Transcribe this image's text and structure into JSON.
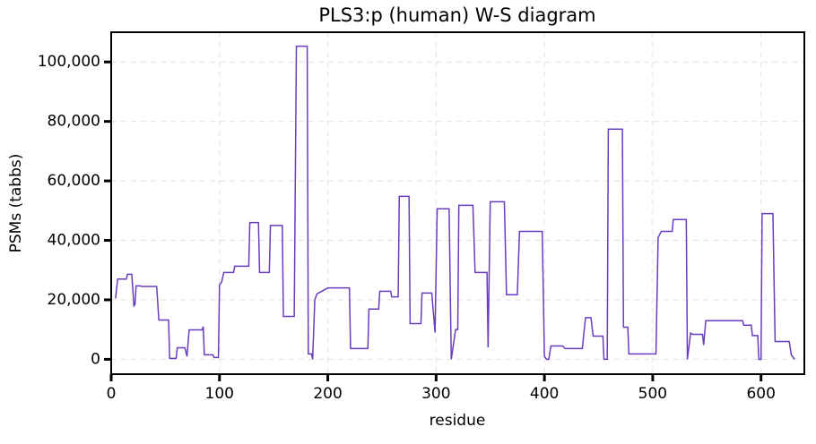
{
  "chart_data": {
    "type": "line",
    "title": "PLS3:p (human) W-S diagram",
    "xlabel": "residue",
    "ylabel": "PSMs (tabbs)",
    "xlim": [
      0,
      640
    ],
    "ylim": [
      -5000,
      110000
    ],
    "xticks": [
      0,
      100,
      200,
      300,
      400,
      500,
      600
    ],
    "yticks": [
      0,
      {
        "value": 20000,
        "label": "20,000"
      },
      {
        "value": 40000,
        "label": "40,000"
      },
      {
        "value": 60000,
        "label": "60,000"
      },
      {
        "value": 80000,
        "label": "80,000"
      },
      {
        "value": 100000,
        "label": "100,000"
      }
    ],
    "grid": true,
    "series": [
      {
        "color": "#6a3dbf",
        "x": [
          4,
          6,
          14,
          15,
          19,
          21,
          22,
          23,
          27,
          28,
          42,
          44,
          53,
          54,
          60,
          61,
          68,
          70,
          72,
          84,
          85,
          86,
          94,
          95,
          99,
          100,
          102,
          104,
          113,
          114,
          127,
          128,
          136,
          137,
          146,
          147,
          158,
          159,
          169,
          171,
          181,
          182,
          185,
          186,
          188,
          190,
          200,
          220,
          221,
          237,
          238,
          247,
          248,
          258,
          259,
          265,
          266,
          275,
          276,
          286,
          287,
          296,
          299,
          301,
          312,
          314,
          318,
          320,
          321,
          334,
          336,
          347,
          348,
          350,
          363,
          365,
          375,
          377,
          398,
          400,
          402,
          404,
          406,
          417,
          419,
          435,
          436,
          438,
          443,
          445,
          454,
          455,
          458,
          459,
          472,
          473,
          477,
          478,
          503,
          505,
          508,
          518,
          519,
          531,
          532,
          535,
          537,
          546,
          547,
          549,
          583,
          584,
          591,
          592,
          597,
          598,
          600,
          601,
          611,
          613,
          626,
          628,
          631
        ],
        "values": [
          20500,
          27000,
          27000,
          28600,
          28600,
          18000,
          18500,
          24700,
          24700,
          24500,
          24500,
          13200,
          13200,
          300,
          300,
          3900,
          3900,
          1000,
          9900,
          9900,
          11000,
          1500,
          1500,
          600,
          600,
          25000,
          26000,
          29200,
          29200,
          31300,
          31300,
          46000,
          46000,
          29200,
          29200,
          45000,
          45000,
          14400,
          14400,
          105300,
          105300,
          1800,
          1800,
          0,
          20000,
          22000,
          24000,
          24000,
          3600,
          3600,
          16900,
          16900,
          22900,
          22900,
          21000,
          21000,
          54800,
          54800,
          12000,
          12000,
          22300,
          22300,
          9000,
          50600,
          50600,
          0,
          10000,
          10000,
          51800,
          51800,
          29200,
          29200,
          4000,
          53000,
          53000,
          21700,
          21700,
          43000,
          43000,
          1000,
          0,
          0,
          4500,
          4500,
          3600,
          3600,
          7200,
          14000,
          14000,
          7800,
          7800,
          0,
          0,
          77400,
          77400,
          10800,
          10800,
          1800,
          1800,
          41000,
          43000,
          43000,
          47000,
          47000,
          0,
          8800,
          8400,
          8400,
          4800,
          13000,
          13000,
          11500,
          11500,
          8000,
          8000,
          0,
          0,
          49000,
          49000,
          6000,
          6000,
          1500,
          0
        ]
      }
    ]
  }
}
